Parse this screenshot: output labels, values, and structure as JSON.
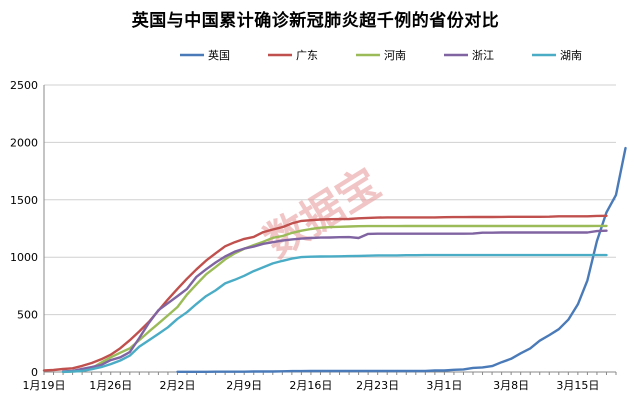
{
  "chart_data": {
    "type": "line",
    "title": "英国与中国累计确诊新冠肺炎超千例的省份对比",
    "xlabel": "",
    "ylabel": "",
    "ylim": [
      0,
      2500
    ],
    "yticks": [
      0,
      500,
      1000,
      1500,
      2000,
      2500
    ],
    "xtick_labels": [
      "1月19日",
      "1月26日",
      "2月2日",
      "2月9日",
      "2月16日",
      "2月23日",
      "3月1日",
      "3月8日",
      "3月15日"
    ],
    "grid": "horizontal",
    "legend_position": "top",
    "watermark": "数据宝",
    "series": [
      {
        "name": "英国",
        "color": "#4a7ab8",
        "start_day": 14,
        "values": [
          2,
          2,
          2,
          2,
          3,
          3,
          3,
          3,
          4,
          4,
          4,
          6,
          8,
          8,
          9,
          9,
          9,
          9,
          9,
          9,
          9,
          9,
          9,
          9,
          9,
          9,
          9,
          13,
          13,
          19,
          23,
          36,
          40,
          51,
          85,
          115,
          163,
          206,
          273,
          321,
          373,
          456,
          590,
          798,
          1140,
          1391,
          1543,
          1950
        ]
      },
      {
        "name": "广东",
        "color": "#c0504d",
        "start_day": 0,
        "values": [
          14,
          17,
          26,
          32,
          53,
          78,
          111,
          151,
          207,
          277,
          354,
          436,
          535,
          632,
          725,
          813,
          895,
          970,
          1034,
          1095,
          1131,
          1159,
          1177,
          1219,
          1241,
          1261,
          1294,
          1316,
          1322,
          1328,
          1331,
          1332,
          1333,
          1339,
          1342,
          1345,
          1347,
          1347,
          1347,
          1347,
          1347,
          1347,
          1348,
          1349,
          1349,
          1350,
          1350,
          1350,
          1351,
          1352,
          1352,
          1352,
          1352,
          1353,
          1356,
          1356,
          1356,
          1356,
          1360,
          1361
        ]
      },
      {
        "name": "河南",
        "color": "#9bbb59",
        "start_day": 2,
        "values": [
          1,
          5,
          9,
          32,
          83,
          128,
          168,
          206,
          278,
          352,
          422,
          493,
          566,
          675,
          764,
          851,
          914,
          981,
          1033,
          1073,
          1105,
          1135,
          1169,
          1184,
          1212,
          1231,
          1246,
          1257,
          1262,
          1265,
          1267,
          1270,
          1271,
          1271,
          1271,
          1271,
          1272,
          1272,
          1272,
          1272,
          1272,
          1272,
          1272,
          1272,
          1272,
          1272,
          1272,
          1272,
          1272,
          1272,
          1272,
          1272,
          1272,
          1272,
          1272,
          1272,
          1273,
          1273
        ]
      },
      {
        "name": "浙江",
        "color": "#8064a2",
        "start_day": 2,
        "values": [
          5,
          10,
          27,
          43,
          62,
          104,
          128,
          173,
          296,
          428,
          538,
          599,
          661,
          724,
          829,
          895,
          954,
          1006,
          1048,
          1075,
          1092,
          1117,
          1131,
          1145,
          1155,
          1162,
          1167,
          1171,
          1172,
          1174,
          1175,
          1167,
          1203,
          1205,
          1205,
          1205,
          1205,
          1205,
          1205,
          1205,
          1205,
          1205,
          1205,
          1206,
          1213,
          1213,
          1215,
          1215,
          1215,
          1215,
          1215,
          1215,
          1215,
          1215,
          1215,
          1215,
          1227,
          1231
        ]
      },
      {
        "name": "湖南",
        "color": "#4bacc6",
        "start_day": 2,
        "values": [
          1,
          4,
          9,
          24,
          43,
          69,
          100,
          143,
          221,
          277,
          332,
          389,
          463,
          521,
          593,
          661,
          711,
          772,
          803,
          838,
          879,
          912,
          946,
          968,
          988,
          1001,
          1004,
          1006,
          1007,
          1008,
          1010,
          1011,
          1013,
          1016,
          1016,
          1016,
          1017,
          1017,
          1018,
          1018,
          1018,
          1018,
          1018,
          1018,
          1018,
          1018,
          1018,
          1018,
          1018,
          1018,
          1018,
          1018,
          1018,
          1018,
          1018,
          1018,
          1018,
          1018
        ]
      }
    ]
  }
}
